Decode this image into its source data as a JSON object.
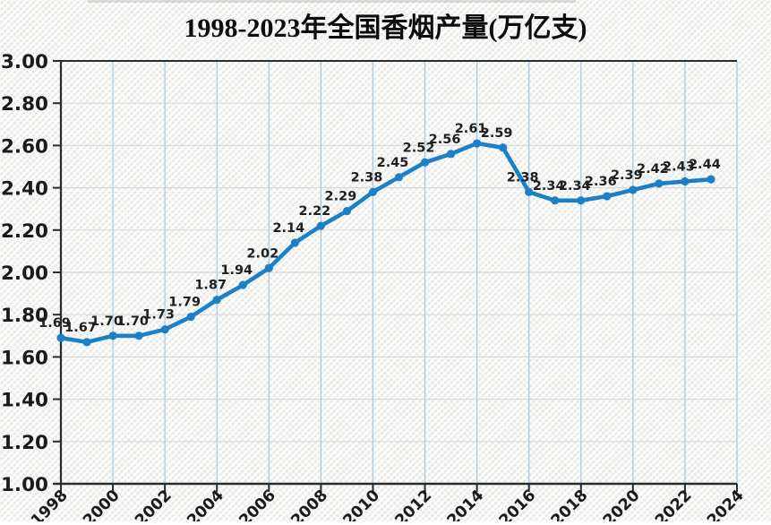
{
  "page": {
    "title": "1998-2023年全国香烟产量(万亿支)"
  },
  "chart_data": {
    "type": "line",
    "title": "1998-2023年全国香烟产量(万亿支)",
    "xlabel": "",
    "ylabel": "",
    "x": [
      1998,
      1999,
      2000,
      2001,
      2002,
      2003,
      2004,
      2005,
      2006,
      2007,
      2008,
      2009,
      2010,
      2011,
      2012,
      2013,
      2014,
      2015,
      2016,
      2017,
      2018,
      2019,
      2020,
      2021,
      2022,
      2023
    ],
    "values": [
      1.69,
      1.67,
      1.7,
      1.7,
      1.73,
      1.79,
      1.87,
      1.94,
      2.02,
      2.14,
      2.22,
      2.29,
      2.38,
      2.45,
      2.52,
      2.56,
      2.61,
      2.59,
      2.38,
      2.34,
      2.34,
      2.36,
      2.39,
      2.42,
      2.43,
      2.44
    ],
    "data_labels": [
      "1.69",
      "1.67",
      "1.70",
      "1.70",
      "1.73",
      "1.79",
      "1.87",
      "1.94",
      "2.02",
      "2.14",
      "2.22",
      "2.29",
      "2.38",
      "2.45",
      "2.52",
      "2.56",
      "2.61",
      "2.59",
      "2.38",
      "2.34",
      "2.34",
      "2.36",
      "2.39",
      "2.42",
      "2.43",
      "2.44"
    ],
    "x_tick_labels": [
      "1998",
      "2000",
      "2002",
      "2004",
      "2006",
      "2008",
      "2010",
      "2012",
      "2014",
      "2016",
      "2018",
      "2020",
      "2022",
      "2024"
    ],
    "y_tick_labels": [
      "3.00",
      "2.80",
      "2.60",
      "2.40",
      "2.20",
      "2.00",
      "1.80",
      "1.60",
      "1.40",
      "1.20",
      "1.00"
    ],
    "ylim": [
      1.0,
      3.0
    ],
    "xlim": [
      1998,
      2024
    ],
    "y_tick_step": 0.2,
    "x_tick_step": 2,
    "grid": "on",
    "legend": "none",
    "marker": "dot",
    "colors": {
      "line": "#1b80c6",
      "marker": "#1b80c6",
      "v_gridline": "#aecde4",
      "h_gridline": "#d8d8d8",
      "axis": "#2a2a2a",
      "tick_label": "#1a1a1a",
      "data_label": "#1f1f1f",
      "title": "#0d0d0d"
    }
  }
}
